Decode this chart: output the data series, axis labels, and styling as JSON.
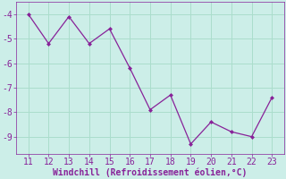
{
  "x": [
    11,
    12,
    13,
    14,
    15,
    16,
    17,
    18,
    19,
    20,
    21,
    22,
    23
  ],
  "y": [
    -4.0,
    -5.2,
    -4.1,
    -5.2,
    -4.6,
    -6.2,
    -7.9,
    -7.3,
    -9.3,
    -8.4,
    -8.8,
    -9.0,
    -7.4
  ],
  "line_color": "#882299",
  "marker": "D",
  "marker_size": 2,
  "bg_color": "#cceee8",
  "grid_color": "#aaddcc",
  "xlabel": "Windchill (Refroidissement éolien,°C)",
  "xlabel_color": "#882299",
  "tick_color": "#882299",
  "spine_color": "#882299",
  "ylim": [
    -9.7,
    -3.5
  ],
  "xlim": [
    10.4,
    23.6
  ],
  "yticks": [
    -9,
    -8,
    -7,
    -6,
    -5,
    -4
  ],
  "xticks": [
    11,
    12,
    13,
    14,
    15,
    16,
    17,
    18,
    19,
    20,
    21,
    22,
    23
  ],
  "tick_fontsize": 7,
  "xlabel_fontsize": 7
}
